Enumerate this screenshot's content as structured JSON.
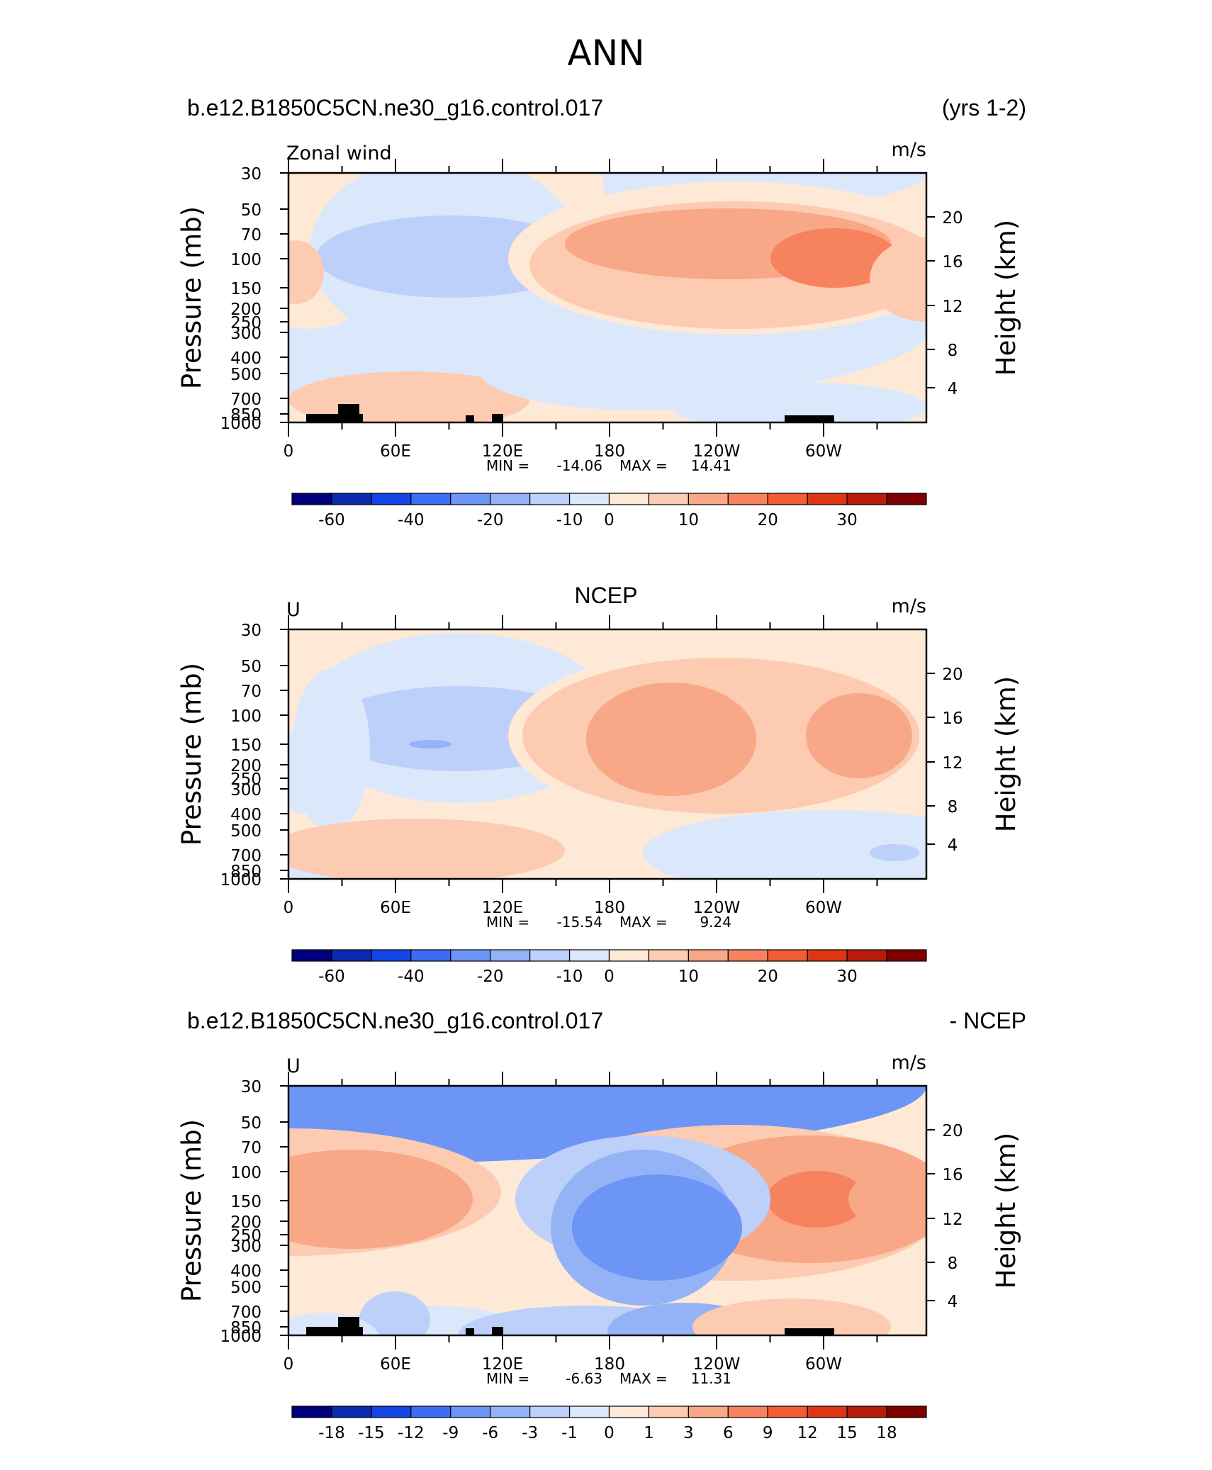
{
  "figure_title": "ANN",
  "chart_data": [
    {
      "type": "heatmap",
      "left_title": "b.e12.B1850C5CN.ne30_g16.control.017",
      "right_title": "(yrs 1-2)",
      "variable": "Zonal wind",
      "units": "m/s",
      "ylabel": "Pressure (mb)",
      "ylabel_right": "Height (km)",
      "xticks": [
        "0",
        "60E",
        "120E",
        "180",
        "120W",
        "60W"
      ],
      "yticks": [
        "30",
        "50",
        "70",
        "100",
        "150",
        "200",
        "250",
        "300",
        "400",
        "500",
        "700",
        "850",
        "1000"
      ],
      "yticks_right": [
        "20",
        "16",
        "12",
        "8",
        "4"
      ],
      "stats": {
        "min_label": "MIN =",
        "min": "-14.06",
        "max_label": "MAX =",
        "max": "14.41"
      },
      "colorbar_labels": [
        "-60",
        "-40",
        "-20",
        "-10",
        "0",
        "10",
        "20",
        "30"
      ],
      "levels_cells": 16
    },
    {
      "type": "heatmap",
      "center_title": "NCEP",
      "variable": "U",
      "units": "m/s",
      "ylabel": "Pressure (mb)",
      "ylabel_right": "Height (km)",
      "xticks": [
        "0",
        "60E",
        "120E",
        "180",
        "120W",
        "60W"
      ],
      "yticks": [
        "30",
        "50",
        "70",
        "100",
        "150",
        "200",
        "250",
        "300",
        "400",
        "500",
        "700",
        "850",
        "1000"
      ],
      "yticks_right": [
        "20",
        "16",
        "12",
        "8",
        "4"
      ],
      "stats": {
        "min_label": "MIN =",
        "min": "-15.54",
        "max_label": "MAX =",
        "max": "9.24"
      },
      "colorbar_labels": [
        "-60",
        "-40",
        "-20",
        "-10",
        "0",
        "10",
        "20",
        "30"
      ],
      "levels_cells": 16
    },
    {
      "type": "heatmap",
      "left_title": "b.e12.B1850C5CN.ne30_g16.control.017",
      "right_title": "- NCEP",
      "variable": "U",
      "units": "m/s",
      "ylabel": "Pressure (mb)",
      "ylabel_right": "Height (km)",
      "xticks": [
        "0",
        "60E",
        "120E",
        "180",
        "120W",
        "60W"
      ],
      "yticks": [
        "30",
        "50",
        "70",
        "100",
        "150",
        "200",
        "250",
        "300",
        "400",
        "500",
        "700",
        "850",
        "1000"
      ],
      "yticks_right": [
        "20",
        "16",
        "12",
        "8",
        "4"
      ],
      "stats": {
        "min_label": "MIN =",
        "min": "-6.63",
        "max_label": "MAX =",
        "max": "11.31"
      },
      "colorbar_labels": [
        "-18",
        "-15",
        "-12",
        "-9",
        "-6",
        "-3",
        "-1",
        "0",
        "1",
        "3",
        "6",
        "9",
        "12",
        "15",
        "18"
      ],
      "levels_cells": 16
    }
  ],
  "colors": {
    "cmap": [
      "#00007f",
      "#0a2bb0",
      "#1446e6",
      "#3a6cf4",
      "#6d95f5",
      "#94b3f7",
      "#bcd0fa",
      "#dbe8fb",
      "#fde9d6",
      "#fccbb1",
      "#f8a886",
      "#f6835e",
      "#f25d35",
      "#dd3614",
      "#b81c0b",
      "#7f0000"
    ],
    "land": "#000000"
  }
}
